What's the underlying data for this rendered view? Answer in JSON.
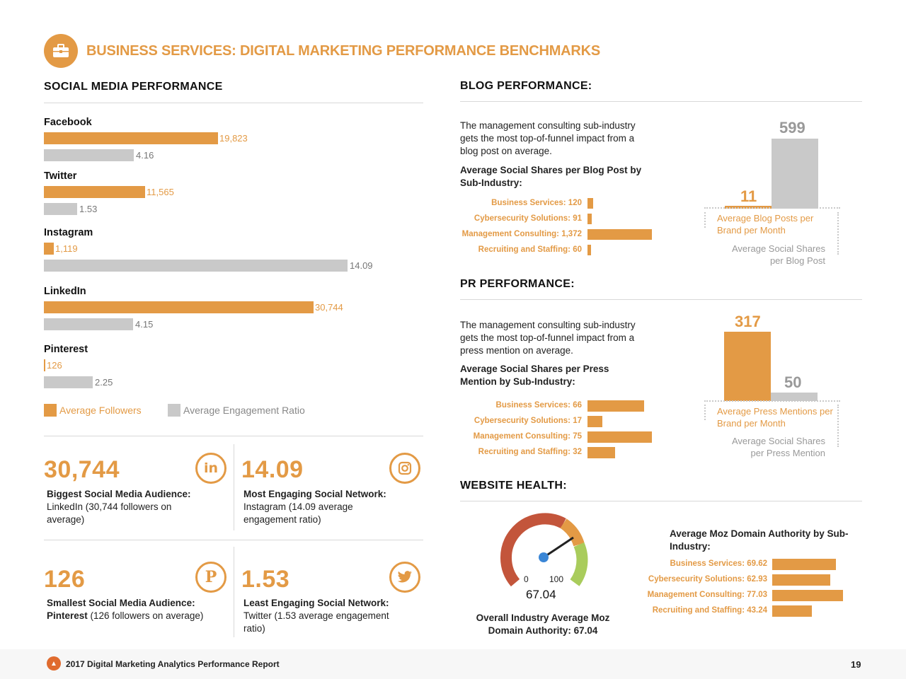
{
  "header": {
    "title": "BUSINESS SERVICES: DIGITAL MARKETING PERFORMANCE BENCHMARKS",
    "icon": "briefcase-icon",
    "accent": "#e39a45"
  },
  "social": {
    "title": "SOCIAL MEDIA PERFORMANCE",
    "networks": [
      {
        "name": "Facebook",
        "followers": 19823,
        "followers_label": "19,823",
        "engagement": 4.16,
        "engagement_label": "4.16"
      },
      {
        "name": "Twitter",
        "followers": 11565,
        "followers_label": "11,565",
        "engagement": 1.53,
        "engagement_label": "1.53"
      },
      {
        "name": "Instagram",
        "followers": 1119,
        "followers_label": "1,119",
        "engagement": 14.09,
        "engagement_label": "14.09"
      },
      {
        "name": "LinkedIn",
        "followers": 30744,
        "followers_label": "30,744",
        "engagement": 4.15,
        "engagement_label": "4.15"
      },
      {
        "name": "Pinterest",
        "followers": 126,
        "followers_label": "126",
        "engagement": 2.25,
        "engagement_label": "2.25"
      }
    ],
    "legend": {
      "followers": "Average Followers",
      "engagement": "Average Engagement Ratio"
    }
  },
  "stats": [
    {
      "value": "30,744",
      "title": "Biggest Social Media Audience:",
      "desc": "LinkedIn (30,744 followers on average)",
      "icon": "linkedin-icon"
    },
    {
      "value": "14.09",
      "title": "Most Engaging Social Network:",
      "desc": "Instagram (14.09 average engagement ratio)",
      "icon": "instagram-icon"
    },
    {
      "value": "126",
      "title": "Smallest Social Media Audience:",
      "desc_bold": "Pinterest",
      "desc": " (126 followers on average)",
      "icon": "pinterest-icon"
    },
    {
      "value": "1.53",
      "title": "Least Engaging Social Network:",
      "desc_bold": "",
      "desc": " Twitter (1.53 average engagement ratio)",
      "icon": "twitter-icon"
    }
  ],
  "blog": {
    "title": "BLOG PERFORMANCE:",
    "intro": "The management consulting sub-industry gets the most top-of-funnel impact from a blog post on average.",
    "chart_title": "Average Social Shares per Blog Post by Sub-Industry:",
    "items": [
      {
        "label": "Business Services: 120",
        "value": 120
      },
      {
        "label": "Cybersecurity Solutions: 91",
        "value": 91
      },
      {
        "label": "Management Consulting: 1,372",
        "value": 1372
      },
      {
        "label": "Recruiting and Staffing: 60",
        "value": 60
      }
    ],
    "posts_value": "11",
    "shares_value": "599",
    "posts_label": "Average Blog Posts per Brand per Month",
    "shares_label": "Average Social Shares per Blog Post"
  },
  "pr": {
    "title": "PR PERFORMANCE:",
    "intro": "The management consulting sub-industry gets the most top-of-funnel impact from a press mention on average.",
    "chart_title": "Average Social Shares per Press Mention by Sub-Industry:",
    "items": [
      {
        "label": "Business Services: 66",
        "value": 66
      },
      {
        "label": "Cybersecurity Solutions: 17",
        "value": 17
      },
      {
        "label": "Management Consulting: 75",
        "value": 75
      },
      {
        "label": "Recruiting and Staffing: 32",
        "value": 32
      }
    ],
    "mentions_value": "317",
    "shares_value": "50",
    "mentions_label": "Average Press Mentions per Brand per Month",
    "shares_label": "Average Social Shares per Press Mention"
  },
  "website": {
    "title": "WEBSITE HEALTH:",
    "gauge_min": "0",
    "gauge_max": "100",
    "gauge_value": "67.04",
    "gauge_caption": "Overall Industry Average Moz Domain Authority: 67.04",
    "chart_title": "Average Moz Domain Authority by Sub-Industry:",
    "items": [
      {
        "label": "Business Services: 69.62",
        "value": 69.62
      },
      {
        "label": "Cybersecurity Solutions: 62.93",
        "value": 62.93
      },
      {
        "label": "Management Consulting: 77.03",
        "value": 77.03
      },
      {
        "label": "Recruiting and Staffing: 43.24",
        "value": 43.24
      }
    ]
  },
  "footer": {
    "report": "2017 Digital Marketing Analytics Performance Report",
    "page": "19"
  }
}
